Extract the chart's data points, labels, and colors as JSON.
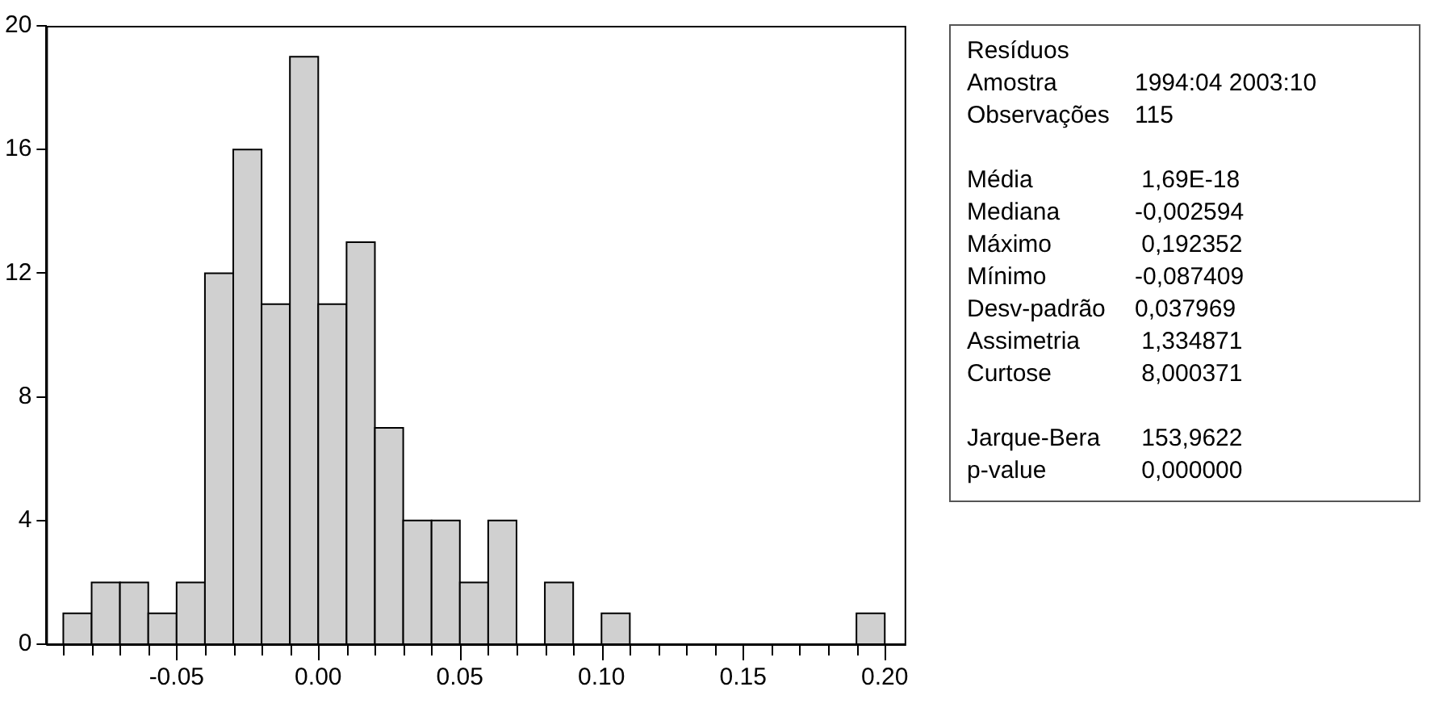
{
  "chart_data": {
    "type": "histogram",
    "bins": [
      -0.09,
      -0.08,
      -0.07,
      -0.06,
      -0.05,
      -0.04,
      -0.03,
      -0.02,
      -0.01,
      0.0,
      0.01,
      0.02,
      0.03,
      0.04,
      0.05,
      0.06,
      0.07,
      0.08,
      0.09,
      0.1,
      0.11,
      0.12,
      0.13,
      0.14,
      0.15,
      0.16,
      0.17,
      0.18,
      0.19,
      0.2
    ],
    "values": [
      1,
      2,
      2,
      1,
      2,
      12,
      16,
      11,
      19,
      11,
      13,
      7,
      4,
      4,
      2,
      4,
      0,
      2,
      0,
      1,
      0,
      0,
      0,
      0,
      0,
      0,
      0,
      0,
      1
    ],
    "color": "#d0d0d0",
    "xlim": [
      -0.096,
      0.207
    ],
    "ylim": [
      0,
      20
    ],
    "xticks": [
      {
        "value": -0.09,
        "label": null
      },
      {
        "value": -0.08,
        "label": null
      },
      {
        "value": -0.07,
        "label": null
      },
      {
        "value": -0.06,
        "label": null
      },
      {
        "value": -0.05,
        "label": "-0.05"
      },
      {
        "value": -0.04,
        "label": null
      },
      {
        "value": -0.03,
        "label": null
      },
      {
        "value": -0.02,
        "label": null
      },
      {
        "value": -0.01,
        "label": null
      },
      {
        "value": 0,
        "label": "0.00"
      },
      {
        "value": 0.01,
        "label": null
      },
      {
        "value": 0.02,
        "label": null
      },
      {
        "value": 0.03,
        "label": null
      },
      {
        "value": 0.04,
        "label": null
      },
      {
        "value": 0.05,
        "label": "0.05"
      },
      {
        "value": 0.06,
        "label": null
      },
      {
        "value": 0.07,
        "label": null
      },
      {
        "value": 0.08,
        "label": null
      },
      {
        "value": 0.09,
        "label": null
      },
      {
        "value": 0.1,
        "label": "0.10"
      },
      {
        "value": 0.11,
        "label": null
      },
      {
        "value": 0.12,
        "label": null
      },
      {
        "value": 0.13,
        "label": null
      },
      {
        "value": 0.14,
        "label": null
      },
      {
        "value": 0.15,
        "label": "0.15"
      },
      {
        "value": 0.16,
        "label": null
      },
      {
        "value": 0.17,
        "label": null
      },
      {
        "value": 0.18,
        "label": null
      },
      {
        "value": 0.19,
        "label": null
      },
      {
        "value": 0.2,
        "label": "0.20"
      }
    ],
    "yticks": [
      0,
      4,
      8,
      12,
      16,
      20
    ],
    "grid": false,
    "legend": false,
    "annotations": [
      "Resíduos",
      "Amostra\t1994:04 2003:10",
      "Observações\t115",
      "Média\t 1,69E-18",
      "Mediana\t-0,002594",
      "Máximo\t 0,192352",
      "Mínimo\t-0,087409",
      "Desv-padrão\t0,037969",
      "Assimetria\t 1,334871",
      "Curtose\t 8,000371",
      "Jarque-Bera\t 153,9622",
      "p-value\t 0,000000"
    ]
  }
}
